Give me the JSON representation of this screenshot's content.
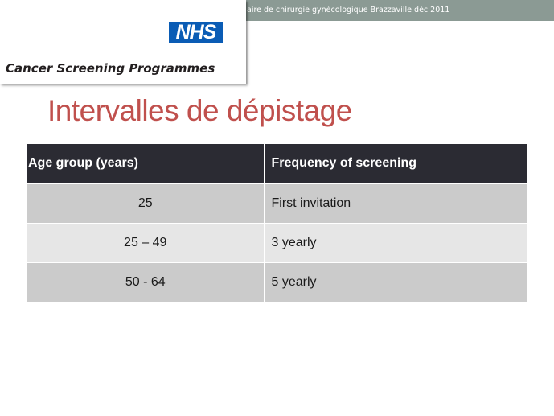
{
  "header": {
    "banner_text": "aire de chirurgie gynécologique Brazzaville déc 2011",
    "banner_color": "#8b9a94"
  },
  "logo": {
    "badge": "NHS",
    "programme": "Cancer Screening Programmes",
    "badge_color": "#0a5cb5"
  },
  "slide": {
    "title": "Intervalles de dépistage",
    "title_color": "#c0504d"
  },
  "table": {
    "columns": [
      "Age group (years)",
      "Frequency of screening"
    ],
    "rows": [
      {
        "age": "25",
        "frequency": "First invitation"
      },
      {
        "age": "25 – 49",
        "frequency": "3 yearly"
      },
      {
        "age": "50 - 64",
        "frequency": "5 yearly"
      }
    ],
    "header_color": "#2b2b33",
    "row_colors": [
      "#cbcbcb",
      "#e6e6e6"
    ]
  }
}
